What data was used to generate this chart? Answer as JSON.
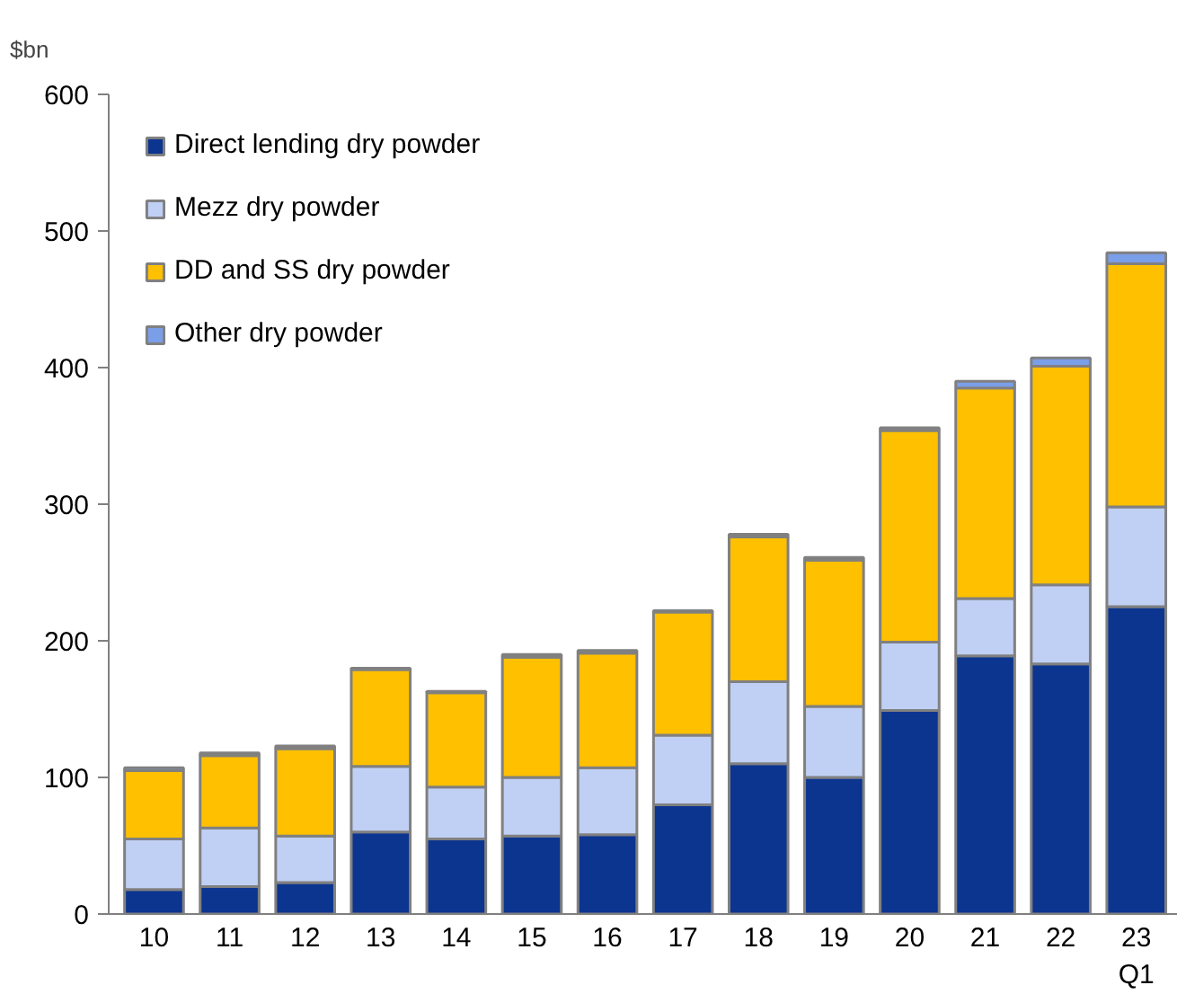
{
  "chart_data": {
    "type": "bar",
    "stacked": true,
    "ylabel": "$bn",
    "categories": [
      "10",
      "11",
      "12",
      "13",
      "14",
      "15",
      "16",
      "17",
      "18",
      "19",
      "20",
      "21",
      "22",
      "23\nQ1"
    ],
    "ylim": [
      0,
      600
    ],
    "yticks": [
      0,
      100,
      200,
      300,
      400,
      500,
      600
    ],
    "grid": false,
    "legend": "top left",
    "series": [
      {
        "name": "Direct lending dry powder",
        "color": "#0c3590",
        "values": [
          18,
          20,
          23,
          60,
          55,
          57,
          58,
          80,
          110,
          100,
          149,
          189,
          183,
          225
        ]
      },
      {
        "name": "Mezz dry powder",
        "color": "#c0d0f5",
        "values": [
          37,
          43,
          34,
          48,
          38,
          43,
          49,
          51,
          60,
          52,
          50,
          42,
          58,
          73
        ]
      },
      {
        "name": "DD and SS dry powder",
        "color": "#ffc000",
        "values": [
          50,
          53,
          64,
          71,
          69,
          88,
          84,
          90,
          106,
          107,
          155,
          154,
          160,
          178
        ]
      },
      {
        "name": "Other dry powder",
        "color": "#7b9ee8",
        "values": [
          2,
          2,
          2,
          1,
          1,
          2,
          2,
          1,
          2,
          2,
          2,
          5,
          6,
          8
        ]
      }
    ]
  }
}
